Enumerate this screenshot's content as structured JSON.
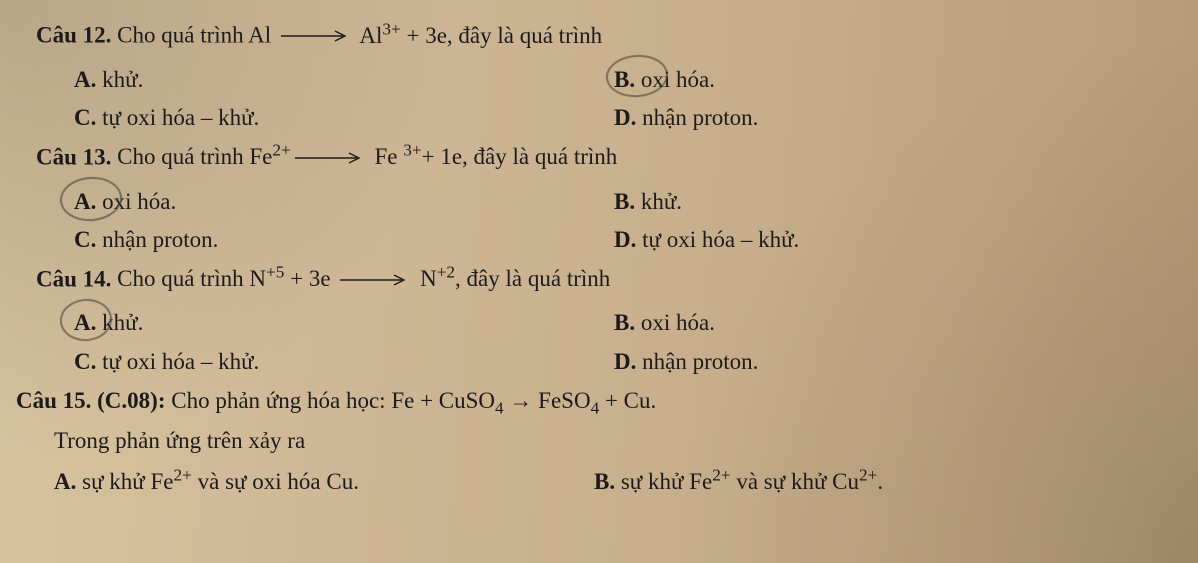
{
  "style": {
    "font_family": "Times New Roman",
    "font_size_pt": 17,
    "text_color": "#1d1a1a",
    "paper_gradient": [
      "#d8c4a0",
      "#d0b998",
      "#c8b08e",
      "#bfa582",
      "#b49a77"
    ],
    "pencil_circle_color": "rgba(70,60,50,0.55)",
    "line_height": 1.68
  },
  "arrow_svg": {
    "width": 70,
    "height": 12,
    "stroke": "#1d1a1a"
  },
  "q12": {
    "label": "Câu 12.",
    "stem_pre": " Cho quá trình Al ",
    "stem_post_html": " Al<sup>3+</sup> + 3e, đây là quá trình",
    "A": {
      "letter": "A.",
      "text": " khử."
    },
    "B": {
      "letter": "B.",
      "text": " oxi hóa.",
      "circled": true
    },
    "C": {
      "letter": "C.",
      "text": " tự oxi hóa – khử."
    },
    "D": {
      "letter": "D.",
      "text": " nhận proton."
    }
  },
  "q13": {
    "label": "Câu 13.",
    "stem_pre_html": " Cho quá trình Fe<sup>2+</sup>",
    "stem_post_html": " Fe <sup>3+</sup>+ 1e, đây là quá trình",
    "A": {
      "letter": "A.",
      "text": " oxi hóa.",
      "circled": true
    },
    "B": {
      "letter": "B.",
      "text": " khử."
    },
    "C": {
      "letter": "C.",
      "text": " nhận proton."
    },
    "D": {
      "letter": "D.",
      "text": " tự oxi hóa – khử."
    }
  },
  "q14": {
    "label": "Câu 14.",
    "stem_pre_html": " Cho quá trình N<sup>+5</sup> + 3e ",
    "stem_post_html": " N<sup>+2</sup>, đây là quá trình",
    "A": {
      "letter": "A.",
      "text": " khử.",
      "circled": true
    },
    "B": {
      "letter": "B.",
      "text": " oxi hóa."
    },
    "C": {
      "letter": "C.",
      "text": " tự oxi hóa – khử."
    },
    "D": {
      "letter": "D.",
      "text": " nhận proton."
    }
  },
  "q15": {
    "label": "Câu 15. (C.08):",
    "stem_html": " Cho phản ứng hóa học: Fe + CuSO<sub>4</sub> → FeSO<sub>4</sub> + Cu.",
    "line2": "Trong phản ứng trên xảy ra",
    "A": {
      "letter": "A.",
      "text_html": " sự khử Fe<sup>2+</sup> và sự oxi hóa Cu."
    },
    "B": {
      "letter": "B.",
      "text_html": " sự khử Fe<sup>2+</sup> và sự khử Cu<sup>2+</sup>."
    }
  }
}
